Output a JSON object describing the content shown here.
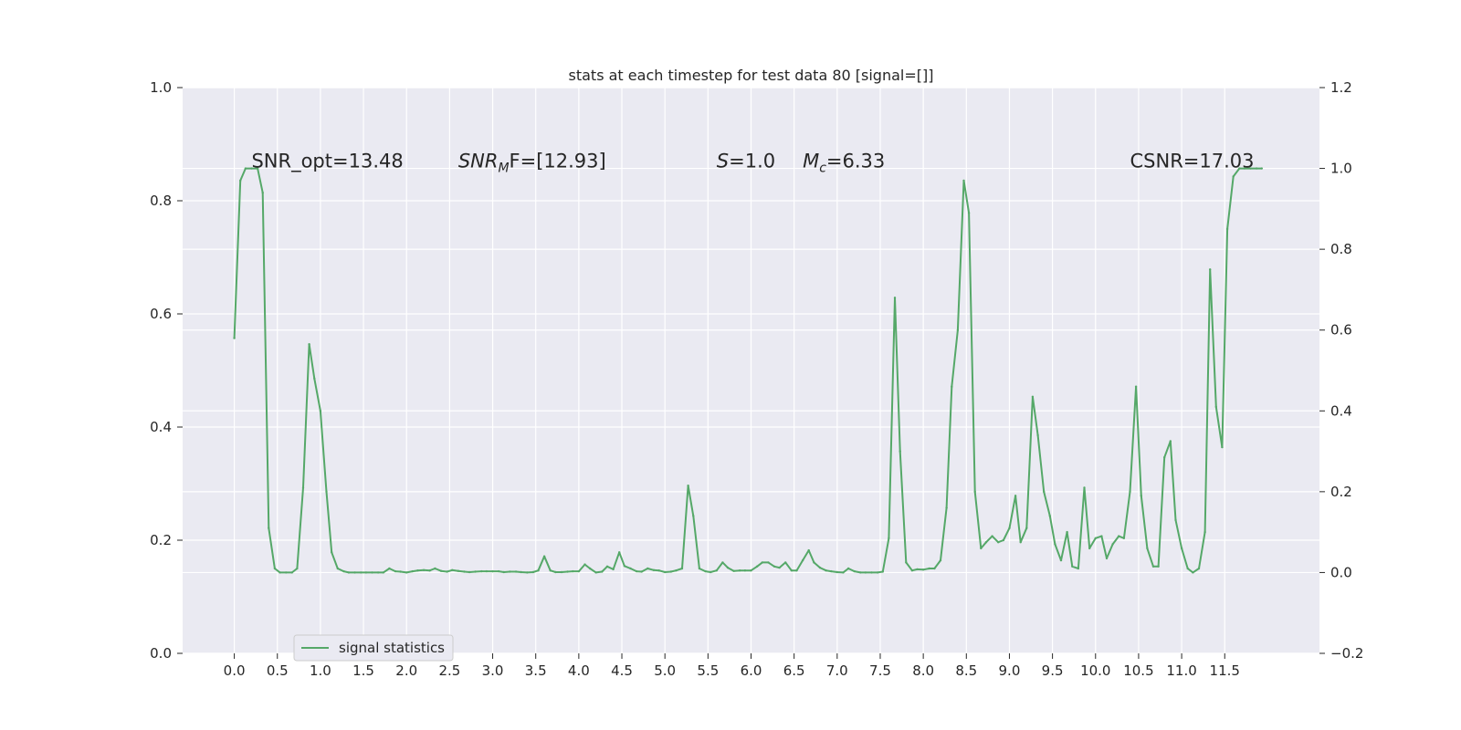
{
  "chart_data": {
    "type": "line",
    "title": "stats at each timestep for test data 80 [signal=[]]",
    "xlabel": "",
    "ylabel": "",
    "grid": true,
    "legend": {
      "placement": "lower-left",
      "entries": [
        "signal statistics"
      ]
    },
    "xlim": [
      -0.6,
      12.6
    ],
    "ylim": [
      0.0,
      1.0
    ],
    "ylim_right": [
      -0.2,
      1.2
    ],
    "x_ticks": [
      0.0,
      0.5,
      1.0,
      1.5,
      2.0,
      2.5,
      3.0,
      3.5,
      4.0,
      4.5,
      5.0,
      5.5,
      6.0,
      6.5,
      7.0,
      7.5,
      8.0,
      8.5,
      9.0,
      9.5,
      10.0,
      10.5,
      11.0,
      11.5
    ],
    "x_tick_labels": [
      "0.0",
      "0.5",
      "1.0",
      "1.5",
      "2.0",
      "2.5",
      "3.0",
      "3.5",
      "4.0",
      "4.5",
      "5.0",
      "5.5",
      "6.0",
      "6.5",
      "7.0",
      "7.5",
      "8.0",
      "8.5",
      "9.0",
      "9.5",
      "10.0",
      "10.5",
      "11.0",
      "11.5"
    ],
    "y_ticks_left": [
      0.0,
      0.2,
      0.4,
      0.6,
      0.8,
      1.0
    ],
    "y_tick_labels_left": [
      "0.0",
      "0.2",
      "0.4",
      "0.6",
      "0.8",
      "1.0"
    ],
    "y_ticks_right": [
      -0.2,
      0.0,
      0.2,
      0.4,
      0.6,
      0.8,
      1.0,
      1.2
    ],
    "y_tick_labels_right": [
      "−0.2",
      "0.0",
      "0.2",
      "0.4",
      "0.6",
      "0.8",
      "1.0",
      "1.2"
    ],
    "annotations": [
      {
        "text": "SNR_opt=13.48",
        "x": 0.2,
        "y": 0.87,
        "math": false
      },
      {
        "main": "SNR",
        "sub": "M",
        "rest": "F=[12.93]",
        "x": 2.6,
        "y": 0.87,
        "math": true
      },
      {
        "main": "S",
        "sub": "",
        "rest": "=1.0",
        "x": 5.6,
        "y": 0.87,
        "math": true
      },
      {
        "main": "M",
        "sub": "c",
        "rest": "=6.33",
        "x": 6.6,
        "y": 0.87,
        "math": true
      },
      {
        "text": "CSNR=17.03",
        "x": 10.4,
        "y": 0.87,
        "math": false
      }
    ],
    "series": [
      {
        "name": "signal statistics",
        "color": "#55a868",
        "axis": "right",
        "x": [
          0.0,
          0.07,
          0.13,
          0.2,
          0.27,
          0.33,
          0.4,
          0.47,
          0.53,
          0.6,
          0.67,
          0.73,
          0.8,
          0.87,
          0.93,
          1.0,
          1.07,
          1.13,
          1.2,
          1.27,
          1.33,
          1.4,
          1.47,
          1.53,
          1.6,
          1.67,
          1.73,
          1.8,
          1.87,
          1.93,
          2.0,
          2.07,
          2.13,
          2.2,
          2.27,
          2.33,
          2.4,
          2.47,
          2.53,
          2.6,
          2.67,
          2.73,
          2.8,
          2.87,
          2.93,
          3.0,
          3.07,
          3.13,
          3.2,
          3.27,
          3.33,
          3.4,
          3.47,
          3.53,
          3.6,
          3.67,
          3.73,
          3.8,
          3.87,
          3.93,
          4.0,
          4.07,
          4.13,
          4.2,
          4.27,
          4.33,
          4.4,
          4.47,
          4.53,
          4.6,
          4.67,
          4.73,
          4.8,
          4.87,
          4.93,
          5.0,
          5.07,
          5.13,
          5.2,
          5.27,
          5.33,
          5.4,
          5.47,
          5.53,
          5.6,
          5.67,
          5.73,
          5.8,
          5.87,
          5.93,
          6.0,
          6.07,
          6.13,
          6.2,
          6.27,
          6.33,
          6.4,
          6.47,
          6.53,
          6.6,
          6.67,
          6.73,
          6.8,
          6.87,
          6.93,
          7.0,
          7.07,
          7.13,
          7.2,
          7.27,
          7.33,
          7.4,
          7.47,
          7.53,
          7.6,
          7.67,
          7.73,
          7.8,
          7.87,
          7.93,
          8.0,
          8.07,
          8.13,
          8.2,
          8.27,
          8.33,
          8.4,
          8.47,
          8.53,
          8.6,
          8.67,
          8.73,
          8.8,
          8.87,
          8.93,
          9.0,
          9.07,
          9.13,
          9.2,
          9.27,
          9.33,
          9.4,
          9.47,
          9.53,
          9.6,
          9.67,
          9.73,
          9.8,
          9.87,
          9.93,
          10.0,
          10.07,
          10.13,
          10.2,
          10.27,
          10.33,
          10.4,
          10.47,
          10.53,
          10.6,
          10.67,
          10.73,
          10.8,
          10.87,
          10.93,
          11.0,
          11.07,
          11.13,
          11.2,
          11.27,
          11.33,
          11.4,
          11.47,
          11.53,
          11.6,
          11.67,
          11.73,
          11.8,
          11.87,
          11.93
        ],
        "y": [
          0.58,
          0.97,
          1.0,
          1.0,
          1.0,
          0.94,
          0.11,
          0.01,
          0.0,
          0.0,
          0.0,
          0.01,
          0.21,
          0.565,
          0.48,
          0.4,
          0.2,
          0.05,
          0.01,
          0.003,
          0.0,
          0.0,
          0.0,
          0.0,
          0.0,
          0.0,
          0.0,
          0.01,
          0.003,
          0.002,
          0.0,
          0.003,
          0.005,
          0.006,
          0.005,
          0.01,
          0.004,
          0.002,
          0.006,
          0.004,
          0.002,
          0.001,
          0.002,
          0.003,
          0.003,
          0.003,
          0.003,
          0.001,
          0.002,
          0.002,
          0.001,
          0.0,
          0.001,
          0.005,
          0.04,
          0.005,
          0.001,
          0.001,
          0.002,
          0.003,
          0.003,
          0.02,
          0.01,
          0.0,
          0.002,
          0.015,
          0.008,
          0.05,
          0.016,
          0.01,
          0.003,
          0.002,
          0.01,
          0.006,
          0.005,
          0.001,
          0.002,
          0.005,
          0.01,
          0.215,
          0.14,
          0.01,
          0.003,
          0.001,
          0.005,
          0.025,
          0.012,
          0.004,
          0.005,
          0.005,
          0.005,
          0.015,
          0.025,
          0.025,
          0.015,
          0.012,
          0.025,
          0.005,
          0.005,
          0.03,
          0.055,
          0.025,
          0.012,
          0.005,
          0.003,
          0.001,
          0.0,
          0.01,
          0.003,
          0.0,
          0.0,
          0.0,
          0.0,
          0.002,
          0.085,
          0.68,
          0.3,
          0.025,
          0.005,
          0.008,
          0.007,
          0.01,
          0.01,
          0.03,
          0.16,
          0.46,
          0.6,
          0.97,
          0.89,
          0.2,
          0.06,
          0.075,
          0.09,
          0.075,
          0.08,
          0.11,
          0.19,
          0.075,
          0.11,
          0.435,
          0.34,
          0.2,
          0.14,
          0.07,
          0.03,
          0.1,
          0.015,
          0.01,
          0.21,
          0.06,
          0.085,
          0.09,
          0.035,
          0.07,
          0.09,
          0.085,
          0.2,
          0.46,
          0.19,
          0.06,
          0.015,
          0.015,
          0.285,
          0.325,
          0.13,
          0.06,
          0.01,
          0.0,
          0.01,
          0.1,
          0.75,
          0.41,
          0.31,
          0.85,
          0.98,
          1.0,
          1.0,
          1.0,
          1.0,
          1.0
        ]
      }
    ]
  }
}
